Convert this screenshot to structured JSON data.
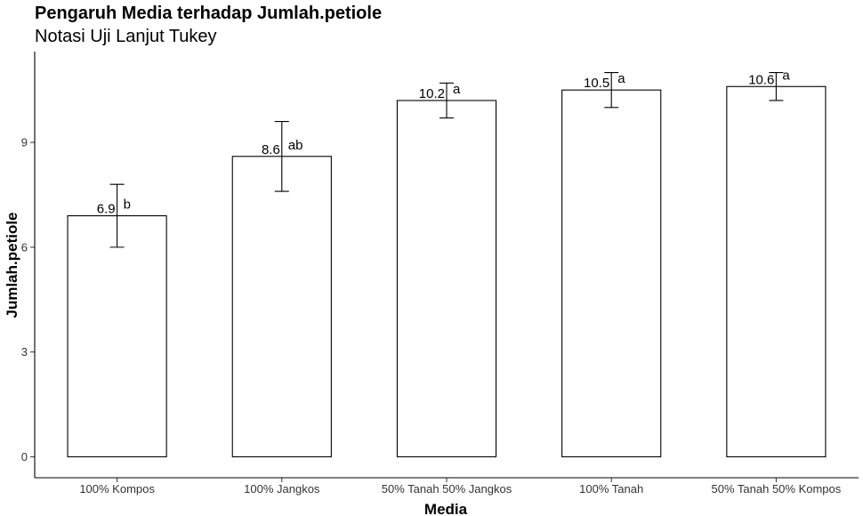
{
  "chart_data": {
    "type": "bar",
    "title": "Pengaruh Media terhadap Jumlah.petiole",
    "subtitle": "Notasi Uji Lanjut Tukey",
    "xlabel": "Media",
    "ylabel": "Jumlah.petiole",
    "ylim": [
      -0.6,
      11.6
    ],
    "yticks": [
      0,
      3,
      6,
      9
    ],
    "ytick_labels": [
      "0",
      "3",
      "6",
      "9"
    ],
    "grid": false,
    "categories": [
      "100% Kompos",
      "100% Jangkos",
      "50% Tanah 50% Jangkos",
      "100% Tanah",
      "50% Tanah 50% Kompos"
    ],
    "values": [
      6.9,
      8.6,
      10.2,
      10.5,
      10.6
    ],
    "value_labels": [
      "6.9",
      "8.6",
      "10.2",
      "10.5",
      "10.6"
    ],
    "error_low": [
      6.0,
      7.6,
      9.7,
      10.0,
      10.2
    ],
    "error_high": [
      7.8,
      9.6,
      10.7,
      11.0,
      11.0
    ],
    "letters": [
      "b",
      "ab",
      "a",
      "a",
      "a"
    ],
    "bar_fill": "#ffffff",
    "bar_stroke": "#000000"
  }
}
